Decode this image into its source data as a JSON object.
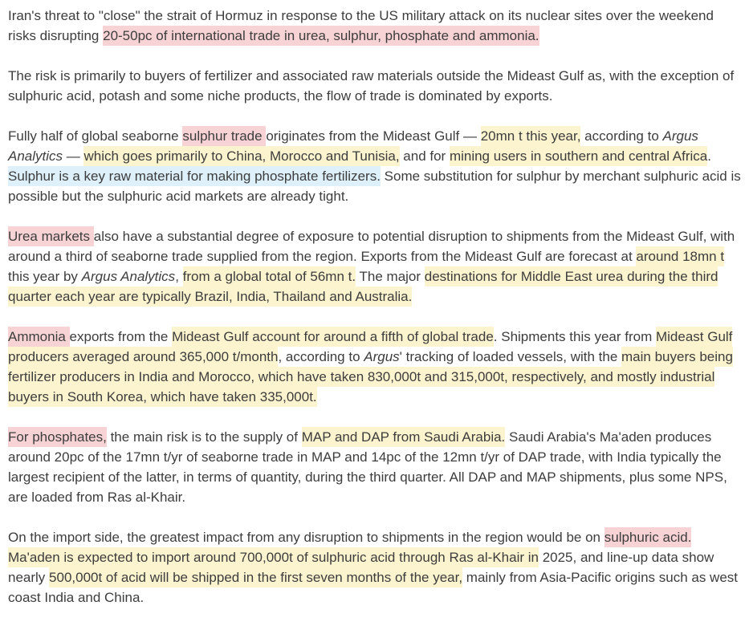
{
  "article": {
    "text_color": "#3d3d3d",
    "highlight_colors": {
      "pink": "#f8d3d5",
      "yellow": "#fcf3cf",
      "blue": "#def0fa"
    },
    "paragraphs": [
      [
        {
          "t": "Iran's threat to \"close\" the strait of Hormuz in response to the US military attack on its nuclear sites over the weekend risks disrupting "
        },
        {
          "t": "20-50pc of international trade in urea, sulphur, phosphate and ammonia.",
          "h": "pink"
        }
      ],
      [
        {
          "t": "The risk is primarily to buyers of fertilizer and associated raw materials outside the Mideast Gulf as, with the exception of sulphuric acid, potash and some niche products, the flow of trade is dominated by exports."
        }
      ],
      [
        {
          "t": "Fully half of global seaborne "
        },
        {
          "t": "sulphur trade ",
          "h": "pink"
        },
        {
          "t": "originates from the Mideast Gulf — "
        },
        {
          "t": "20mn t this year,",
          "h": "yellow"
        },
        {
          "t": " according to "
        },
        {
          "t": "Argus Analytics",
          "i": true
        },
        {
          "t": " — "
        },
        {
          "t": "which goes primarily to China, Morocco and Tunisia,",
          "h": "yellow"
        },
        {
          "t": " and for "
        },
        {
          "t": "mining users in southern and central Africa",
          "h": "yellow"
        },
        {
          "t": ". "
        },
        {
          "t": "Sulphur is a key raw material for making phosphate fertilizers.",
          "h": "blue"
        },
        {
          "t": " Some substitution for sulphur by merchant sulphuric acid is possible but the sulphuric acid markets are already tight."
        }
      ],
      [
        {
          "t": "Urea markets ",
          "h": "pink"
        },
        {
          "t": "also have a substantial degree of exposure to potential disruption to shipments from the Mideast Gulf, with around a third of seaborne trade supplied from the region. Exports from the Mideast Gulf are forecast at "
        },
        {
          "t": "around 18mn t ",
          "h": "yellow"
        },
        {
          "t": "this year by "
        },
        {
          "t": "Argus Analytics",
          "i": true
        },
        {
          "t": ", "
        },
        {
          "t": "from a global total of 56mn t.",
          "h": "yellow"
        },
        {
          "t": " The major "
        },
        {
          "t": "destinations for Middle East urea during the third quarter each year are typically Brazil, India, Thailand and Australia.",
          "h": "yellow"
        }
      ],
      [
        {
          "t": "Ammonia ",
          "h": "pink"
        },
        {
          "t": "exports from the "
        },
        {
          "t": "Mideast Gulf account for around a fifth of global trade",
          "h": "yellow"
        },
        {
          "t": ". Shipments this year from "
        },
        {
          "t": "Mideast Gulf producers averaged around 365,000 t/month",
          "h": "yellow"
        },
        {
          "t": ", according to "
        },
        {
          "t": "Argus",
          "i": true
        },
        {
          "t": "' tracking of loaded vessels, with the "
        },
        {
          "t": "main buyers being fertilizer producers in India and Morocco, which have taken 830,000t and 315,000t, respectively, and mostly industrial buyers in South Korea, which have taken 335,000t.",
          "h": "yellow"
        }
      ],
      [
        {
          "t": "For phosphates,",
          "h": "pink"
        },
        {
          "t": " the main risk is to the supply of "
        },
        {
          "t": "MAP and DAP from Saudi Arabia.",
          "h": "yellow"
        },
        {
          "t": " Saudi Arabia's Ma'aden produces around 20pc of the 17mn t/yr of seaborne trade in MAP and 14pc of the 12mn t/yr of DAP trade, with India typically the largest recipient of the latter, in terms of quantity, during the third quarter. All DAP and MAP shipments, plus some NPS, are loaded from Ras al-Khair."
        }
      ],
      [
        {
          "t": "On the import side, the greatest impact from any disruption to shipments in the region would be on "
        },
        {
          "t": "sulphuric acid.",
          "h": "pink"
        },
        {
          "t": " "
        },
        {
          "t": "Ma'aden is expected to import around 700,000t of sulphuric acid through Ras al-Khair in",
          "h": "yellow"
        },
        {
          "t": " 2025, and line-up data show nearly "
        },
        {
          "t": "500,000t of acid will be shipped in the first seven months of the year,",
          "h": "yellow"
        },
        {
          "t": " mainly from Asia-Pacific origins such as west coast India and China."
        }
      ]
    ]
  }
}
